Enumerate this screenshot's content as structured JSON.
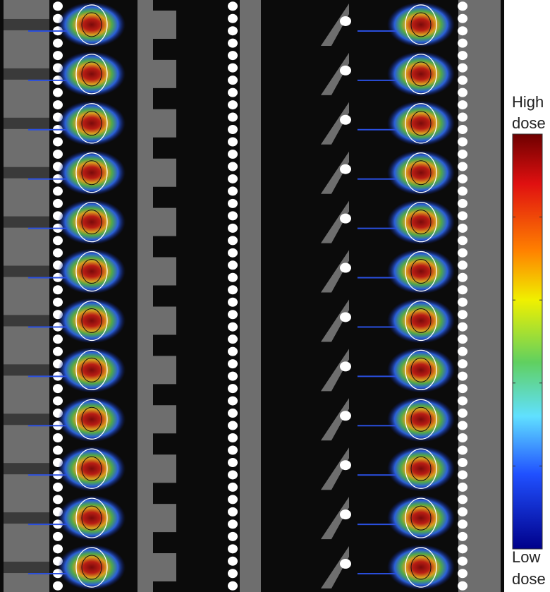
{
  "colorbar": {
    "high_label": [
      "High",
      "dose"
    ],
    "low_label": [
      "Low",
      "dose"
    ]
  }
}
